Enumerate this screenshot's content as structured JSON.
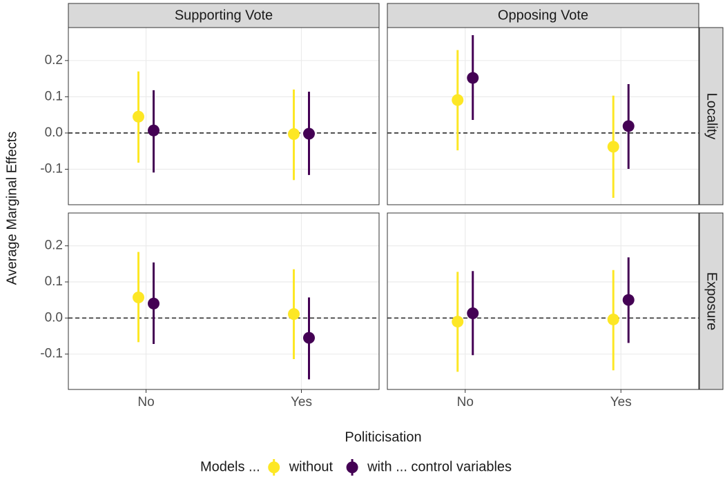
{
  "chart_data": {
    "type": "pointrange",
    "x_label": "Politicisation",
    "y_label": "Average Marginal Effects",
    "legend_title": "Models ...",
    "columns": [
      "Supporting Vote",
      "Opposing Vote"
    ],
    "rows": [
      "Locality",
      "Exposure"
    ],
    "categories": [
      "No",
      "Yes"
    ],
    "ylim": [
      -0.198,
      0.291
    ],
    "yticks": [
      -0.1,
      {
        "value": 0,
        "label": "0.0"
      },
      0.1,
      0.2
    ],
    "hline": 0,
    "grid": true,
    "legend_position": "bottom",
    "series": [
      {
        "name": "without",
        "color": "#fde725"
      },
      {
        "name": "with ... control variables",
        "color": "#440154"
      }
    ],
    "panels": [
      {
        "column": 0,
        "row": 0,
        "series": [
          {
            "values": [
              0.045,
              -0.003
            ],
            "lower": [
              -0.082,
              -0.13
            ],
            "upper": [
              0.17,
              0.12
            ]
          },
          {
            "values": [
              0.007,
              -0.002
            ],
            "lower": [
              -0.109,
              -0.116
            ],
            "upper": [
              0.118,
              0.114
            ]
          }
        ]
      },
      {
        "column": 1,
        "row": 0,
        "series": [
          {
            "values": [
              0.091,
              -0.038
            ],
            "lower": [
              -0.048,
              -0.179
            ],
            "upper": [
              0.229,
              0.103
            ]
          },
          {
            "values": [
              0.152,
              0.019
            ],
            "lower": [
              0.036,
              -0.099
            ],
            "upper": [
              0.27,
              0.135
            ]
          }
        ]
      },
      {
        "column": 0,
        "row": 1,
        "series": [
          {
            "values": [
              0.057,
              0.011
            ],
            "lower": [
              -0.067,
              -0.114
            ],
            "upper": [
              0.183,
              0.135
            ]
          },
          {
            "values": [
              0.04,
              -0.055
            ],
            "lower": [
              -0.072,
              -0.17
            ],
            "upper": [
              0.154,
              0.057
            ]
          }
        ]
      },
      {
        "column": 1,
        "row": 1,
        "series": [
          {
            "values": [
              -0.01,
              -0.004
            ],
            "lower": [
              -0.149,
              -0.145
            ],
            "upper": [
              0.128,
              0.133
            ]
          },
          {
            "values": [
              0.013,
              0.05
            ],
            "lower": [
              -0.103,
              -0.069
            ],
            "upper": [
              0.13,
              0.168
            ]
          }
        ]
      }
    ]
  }
}
